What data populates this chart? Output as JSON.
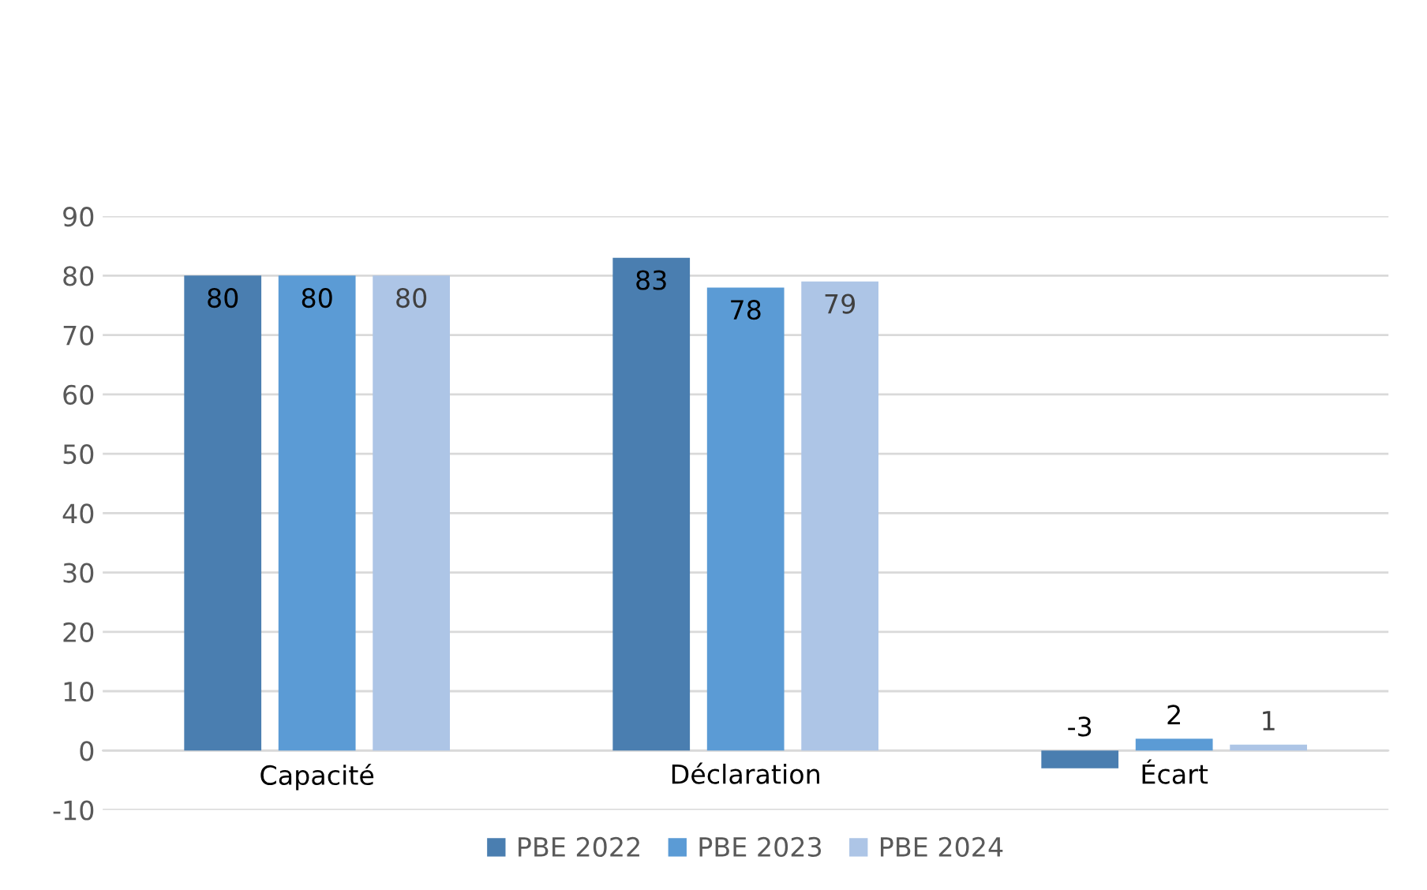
{
  "chart_data": {
    "type": "bar",
    "categories": [
      "Capacité",
      "Déclaration",
      "Écart"
    ],
    "series": [
      {
        "name": "PBE 2022",
        "color": "#4a7eb0",
        "values": [
          80,
          83,
          -3
        ]
      },
      {
        "name": "PBE 2023",
        "color": "#5b9bd5",
        "values": [
          80,
          78,
          2
        ]
      },
      {
        "name": "PBE 2024",
        "color": "#adc5e6",
        "values": [
          80,
          79,
          1
        ]
      }
    ],
    "ylim": [
      -10,
      90
    ],
    "yticks": [
      -10,
      0,
      10,
      20,
      30,
      40,
      50,
      60,
      70,
      80,
      90
    ],
    "grid": "y",
    "legend": "bottom",
    "data_labels": true
  }
}
